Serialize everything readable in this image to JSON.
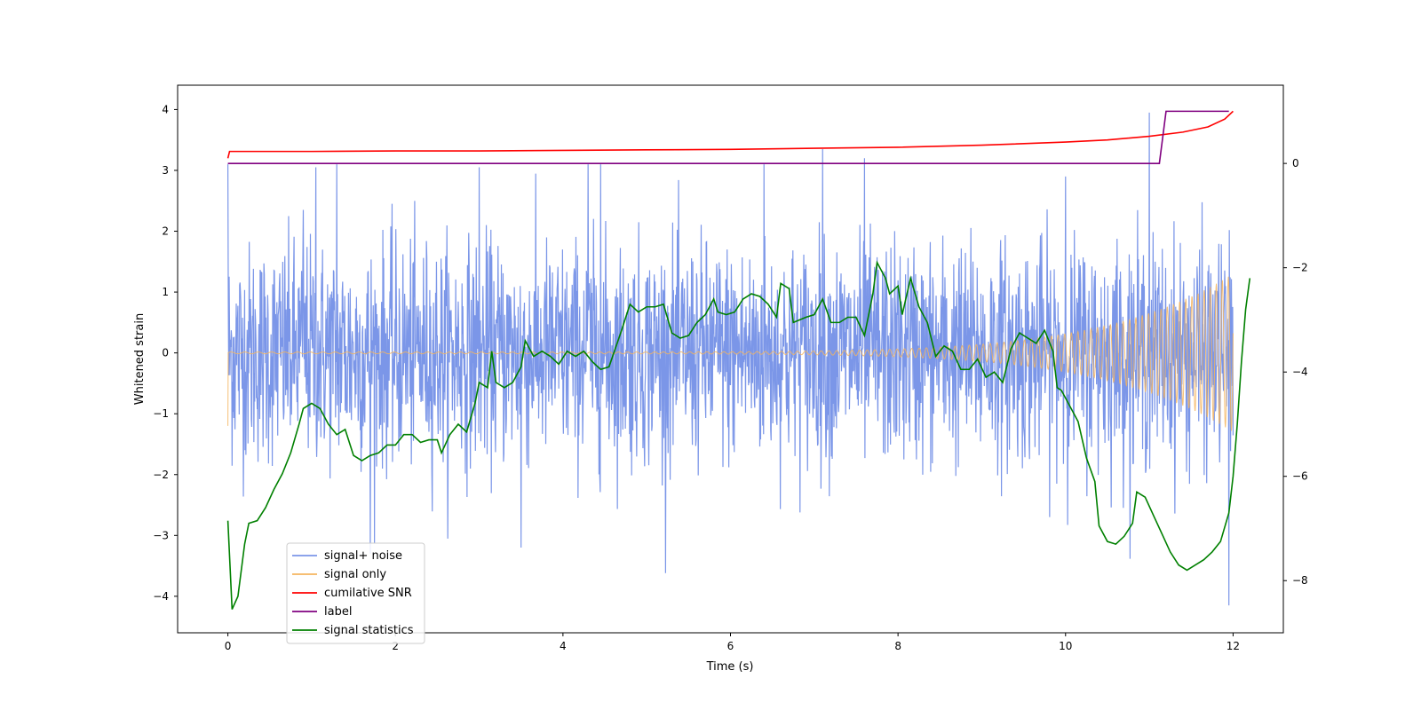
{
  "chart_data": {
    "type": "line",
    "title": "",
    "xlabel": "Time (s)",
    "ylabel": "Whitened strain",
    "y2label": "",
    "xlim": [
      -0.6,
      12.6
    ],
    "ylim": [
      -4.6,
      4.4
    ],
    "y2lim": [
      -9.0,
      1.5
    ],
    "xticks": [
      0,
      2,
      4,
      6,
      8,
      10,
      12
    ],
    "xtick_labels": [
      "0",
      "2",
      "4",
      "6",
      "8",
      "10",
      "12"
    ],
    "yticks": [
      -4,
      -3,
      -2,
      -1,
      0,
      1,
      2,
      3,
      4
    ],
    "ytick_labels": [
      "−4",
      "−3",
      "−2",
      "−1",
      "0",
      "1",
      "2",
      "3",
      "4"
    ],
    "y2ticks": [
      -8,
      -6,
      -4,
      -2,
      0
    ],
    "y2tick_labels": [
      "−8",
      "−6",
      "−4",
      "−2",
      "0"
    ],
    "legend_position": "lower-left",
    "series": [
      {
        "name": "signal+ noise",
        "axis": "left",
        "color": "#7b96e8",
        "t_range": [
          0,
          12
        ],
        "noise_std": 0.9,
        "noise_min": -4.15,
        "noise_max": 3.95,
        "peaks": [
          [
            0.0,
            3.1
          ],
          [
            0.9,
            2.35
          ],
          [
            1.05,
            3.05
          ],
          [
            1.3,
            3.1
          ],
          [
            1.7,
            -3.3
          ],
          [
            3.0,
            3.05
          ],
          [
            3.5,
            -3.2
          ],
          [
            4.3,
            3.1
          ],
          [
            4.45,
            3.1
          ],
          [
            6.4,
            3.1
          ],
          [
            7.1,
            3.35
          ],
          [
            7.6,
            3.2
          ],
          [
            10.0,
            2.9
          ],
          [
            11.0,
            3.95
          ],
          [
            11.95,
            -4.15
          ]
        ]
      },
      {
        "name": "signal only",
        "axis": "left",
        "color": "#f4b55f",
        "t_range": [
          0,
          12
        ],
        "start_value": -1.2,
        "amp_start": 0.015,
        "amp_end": 1.3,
        "freq_start": 6,
        "freq_end": 14
      },
      {
        "name": "cumilative SNR",
        "axis": "right",
        "color": "#ff0000",
        "points": [
          [
            0.0,
            0.1
          ],
          [
            0.02,
            0.23
          ],
          [
            1.0,
            0.23
          ],
          [
            2.0,
            0.24
          ],
          [
            3.0,
            0.24
          ],
          [
            4.0,
            0.25
          ],
          [
            5.0,
            0.26
          ],
          [
            6.0,
            0.27
          ],
          [
            7.0,
            0.29
          ],
          [
            8.0,
            0.31
          ],
          [
            9.0,
            0.35
          ],
          [
            10.0,
            0.41
          ],
          [
            10.5,
            0.45
          ],
          [
            11.0,
            0.52
          ],
          [
            11.4,
            0.6
          ],
          [
            11.7,
            0.7
          ],
          [
            11.9,
            0.85
          ],
          [
            12.0,
            1.0
          ]
        ]
      },
      {
        "name": "label",
        "axis": "right",
        "color": "#800080",
        "points": [
          [
            0.0,
            0.0
          ],
          [
            11.12,
            0.0
          ],
          [
            11.2,
            1.0
          ],
          [
            11.95,
            1.0
          ]
        ]
      },
      {
        "name": "signal statistics",
        "axis": "right",
        "color": "#008000",
        "points": [
          [
            0.0,
            -6.85
          ],
          [
            0.05,
            -8.55
          ],
          [
            0.12,
            -8.3
          ],
          [
            0.2,
            -7.3
          ],
          [
            0.25,
            -6.9
          ],
          [
            0.35,
            -6.85
          ],
          [
            0.45,
            -6.6
          ],
          [
            0.55,
            -6.25
          ],
          [
            0.65,
            -5.95
          ],
          [
            0.75,
            -5.55
          ],
          [
            0.85,
            -5.0
          ],
          [
            0.9,
            -4.7
          ],
          [
            1.0,
            -4.6
          ],
          [
            1.1,
            -4.7
          ],
          [
            1.2,
            -5.0
          ],
          [
            1.3,
            -5.2
          ],
          [
            1.4,
            -5.1
          ],
          [
            1.5,
            -5.6
          ],
          [
            1.6,
            -5.7
          ],
          [
            1.7,
            -5.6
          ],
          [
            1.8,
            -5.55
          ],
          [
            1.9,
            -5.4
          ],
          [
            2.0,
            -5.4
          ],
          [
            2.1,
            -5.2
          ],
          [
            2.2,
            -5.2
          ],
          [
            2.3,
            -5.35
          ],
          [
            2.4,
            -5.3
          ],
          [
            2.5,
            -5.3
          ],
          [
            2.55,
            -5.55
          ],
          [
            2.65,
            -5.2
          ],
          [
            2.75,
            -5.0
          ],
          [
            2.85,
            -5.15
          ],
          [
            2.95,
            -4.6
          ],
          [
            3.0,
            -4.2
          ],
          [
            3.1,
            -4.3
          ],
          [
            3.15,
            -3.6
          ],
          [
            3.2,
            -4.2
          ],
          [
            3.3,
            -4.3
          ],
          [
            3.4,
            -4.2
          ],
          [
            3.5,
            -3.9
          ],
          [
            3.55,
            -3.4
          ],
          [
            3.65,
            -3.7
          ],
          [
            3.75,
            -3.6
          ],
          [
            3.85,
            -3.7
          ],
          [
            3.95,
            -3.85
          ],
          [
            4.05,
            -3.6
          ],
          [
            4.15,
            -3.7
          ],
          [
            4.25,
            -3.6
          ],
          [
            4.35,
            -3.8
          ],
          [
            4.45,
            -3.95
          ],
          [
            4.55,
            -3.9
          ],
          [
            4.7,
            -3.2
          ],
          [
            4.8,
            -2.7
          ],
          [
            4.9,
            -2.85
          ],
          [
            5.0,
            -2.75
          ],
          [
            5.1,
            -2.75
          ],
          [
            5.2,
            -2.7
          ],
          [
            5.3,
            -3.25
          ],
          [
            5.4,
            -3.35
          ],
          [
            5.5,
            -3.3
          ],
          [
            5.6,
            -3.05
          ],
          [
            5.7,
            -2.9
          ],
          [
            5.8,
            -2.6
          ],
          [
            5.85,
            -2.85
          ],
          [
            5.95,
            -2.9
          ],
          [
            6.05,
            -2.85
          ],
          [
            6.15,
            -2.6
          ],
          [
            6.25,
            -2.5
          ],
          [
            6.35,
            -2.55
          ],
          [
            6.45,
            -2.7
          ],
          [
            6.55,
            -2.95
          ],
          [
            6.6,
            -2.3
          ],
          [
            6.7,
            -2.4
          ],
          [
            6.75,
            -3.05
          ],
          [
            6.9,
            -2.95
          ],
          [
            7.0,
            -2.9
          ],
          [
            7.1,
            -2.6
          ],
          [
            7.2,
            -3.05
          ],
          [
            7.3,
            -3.05
          ],
          [
            7.4,
            -2.95
          ],
          [
            7.5,
            -2.95
          ],
          [
            7.6,
            -3.3
          ],
          [
            7.7,
            -2.5
          ],
          [
            7.75,
            -1.9
          ],
          [
            7.85,
            -2.2
          ],
          [
            7.9,
            -2.5
          ],
          [
            8.0,
            -2.35
          ],
          [
            8.05,
            -2.9
          ],
          [
            8.15,
            -2.2
          ],
          [
            8.25,
            -2.75
          ],
          [
            8.35,
            -3.05
          ],
          [
            8.45,
            -3.7
          ],
          [
            8.55,
            -3.5
          ],
          [
            8.65,
            -3.6
          ],
          [
            8.75,
            -3.95
          ],
          [
            8.85,
            -3.95
          ],
          [
            8.95,
            -3.75
          ],
          [
            9.05,
            -4.1
          ],
          [
            9.15,
            -4.0
          ],
          [
            9.25,
            -4.2
          ],
          [
            9.35,
            -3.55
          ],
          [
            9.45,
            -3.25
          ],
          [
            9.55,
            -3.35
          ],
          [
            9.65,
            -3.45
          ],
          [
            9.75,
            -3.2
          ],
          [
            9.85,
            -3.6
          ],
          [
            9.9,
            -4.3
          ],
          [
            9.95,
            -4.35
          ],
          [
            10.05,
            -4.65
          ],
          [
            10.15,
            -4.95
          ],
          [
            10.25,
            -5.65
          ],
          [
            10.35,
            -6.1
          ],
          [
            10.4,
            -6.95
          ],
          [
            10.5,
            -7.25
          ],
          [
            10.6,
            -7.3
          ],
          [
            10.7,
            -7.15
          ],
          [
            10.8,
            -6.9
          ],
          [
            10.85,
            -6.3
          ],
          [
            10.95,
            -6.4
          ],
          [
            11.05,
            -6.75
          ],
          [
            11.15,
            -7.1
          ],
          [
            11.25,
            -7.45
          ],
          [
            11.35,
            -7.7
          ],
          [
            11.45,
            -7.8
          ],
          [
            11.55,
            -7.7
          ],
          [
            11.65,
            -7.6
          ],
          [
            11.75,
            -7.45
          ],
          [
            11.85,
            -7.25
          ],
          [
            11.95,
            -6.7
          ],
          [
            12.0,
            -6.0
          ],
          [
            12.05,
            -5.0
          ],
          [
            12.1,
            -3.8
          ],
          [
            12.15,
            -2.8
          ],
          [
            12.2,
            -2.2
          ]
        ]
      }
    ]
  }
}
